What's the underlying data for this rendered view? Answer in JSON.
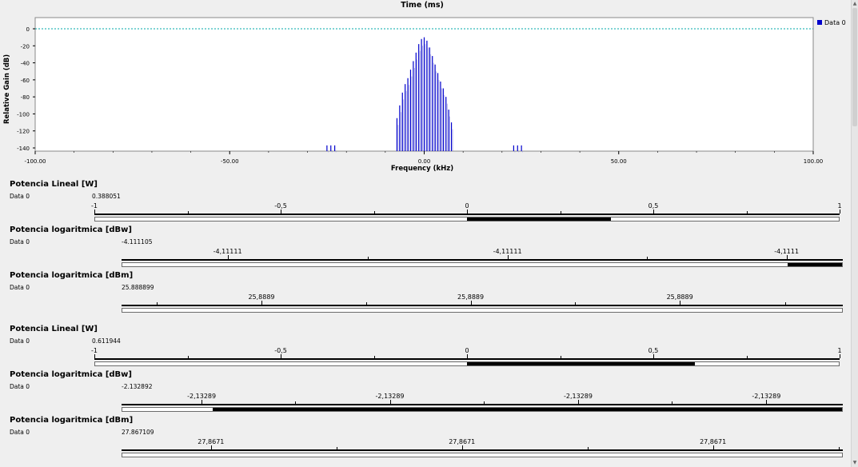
{
  "plot": {
    "top_label": "Time (ms)",
    "xlabel": "Frequency (kHz)",
    "ylabel": "Relative Gain (dB)",
    "legend": "Data 0",
    "legend_color": "#0000cc",
    "line_color": "#0000cc",
    "dashed_color": "#00aaaa",
    "x_ticks": [
      "-100.00",
      "-50.00",
      "0.00",
      "50.00",
      "100.00"
    ],
    "y_ticks": [
      "0",
      "-20",
      "-40",
      "-60",
      "-80",
      "-100",
      "-120",
      "-140"
    ],
    "chart_data": {
      "type": "line",
      "xlabel": "Frequency (kHz)",
      "ylabel": "Relative Gain (dB)",
      "xlim": [
        -100,
        100
      ],
      "ylim": [
        -140,
        0
      ],
      "series": [
        {
          "name": "Data 0",
          "peaks": [
            [
              -7.0,
              -105
            ],
            [
              -6.3,
              -90
            ],
            [
              -5.6,
              -75
            ],
            [
              -4.9,
              -65
            ],
            [
              -4.2,
              -58
            ],
            [
              -3.5,
              -48
            ],
            [
              -2.8,
              -38
            ],
            [
              -2.1,
              -28
            ],
            [
              -1.4,
              -18
            ],
            [
              -0.7,
              -12
            ],
            [
              0.0,
              -10
            ],
            [
              0.7,
              -14
            ],
            [
              1.4,
              -22
            ],
            [
              2.1,
              -32
            ],
            [
              2.8,
              -42
            ],
            [
              3.5,
              -52
            ],
            [
              4.2,
              -62
            ],
            [
              4.9,
              -70
            ],
            [
              5.6,
              -80
            ],
            [
              6.3,
              -95
            ],
            [
              7.0,
              -110
            ],
            [
              -25.0,
              -137
            ],
            [
              -24.0,
              -137
            ],
            [
              -23.0,
              -137
            ],
            [
              23.0,
              -137
            ],
            [
              24.0,
              -137
            ],
            [
              25.0,
              -137
            ]
          ]
        }
      ],
      "reference_line_db": 0
    }
  },
  "gauges": [
    {
      "title": "Potencia Lineal [W]",
      "series": "Data 0",
      "value": "0.388051",
      "ticks": [
        "-1",
        "-0,5",
        "0",
        "0,5",
        "1"
      ],
      "fill_from": 0.5,
      "fill_to": 0.694
    },
    {
      "title": "Potencia logaritmica [dBw]",
      "series": "Data 0",
      "value": "-4.111105",
      "ticks": [
        "-4,11111",
        "-4,11111",
        "-4,1111"
      ],
      "fill_from": 0.924,
      "fill_to": 1.0
    },
    {
      "title": "Potencia logaritmica [dBm]",
      "series": "Data 0",
      "value": "25.888899",
      "ticks": [
        "25,8889",
        "25,8889",
        "25,8889"
      ],
      "fill_from": 0,
      "fill_to": 0
    },
    {
      "title": "Potencia Lineal [W]",
      "series": "Data 0",
      "value": "0.611944",
      "ticks": [
        "-1",
        "-0,5",
        "0",
        "0,5",
        "1"
      ],
      "fill_from": 0.5,
      "fill_to": 0.806
    },
    {
      "title": "Potencia logaritmica [dBw]",
      "series": "Data 0",
      "value": "-2.132892",
      "ticks": [
        "-2,13289",
        "-2,13289",
        "-2,13289",
        "-2,13289"
      ],
      "fill_from": 0.125,
      "fill_to": 1.0
    },
    {
      "title": "Potencia logaritmica [dBm]",
      "series": "Data 0",
      "value": "27.867109",
      "ticks": [
        "27,8671",
        "27,8671",
        "27,8671"
      ],
      "fill_from": 0,
      "fill_to": 0
    }
  ]
}
